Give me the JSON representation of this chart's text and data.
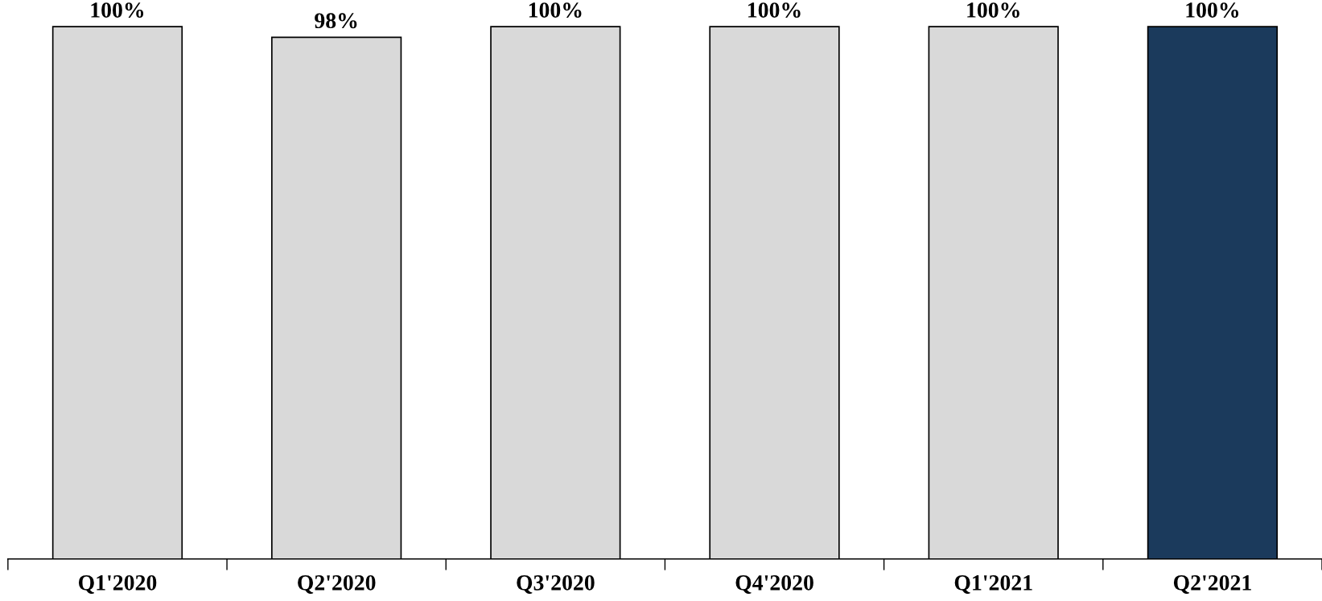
{
  "chart_data": {
    "type": "bar",
    "categories": [
      "Q1'2020",
      "Q2'2020",
      "Q3'2020",
      "Q4'2020",
      "Q1'2021",
      "Q2'2021"
    ],
    "values": [
      100,
      98,
      100,
      100,
      100,
      100
    ],
    "colors": [
      "#d9d9d9",
      "#d9d9d9",
      "#d9d9d9",
      "#d9d9d9",
      "#d9d9d9",
      "#1b3a5c"
    ],
    "value_labels": [
      "100%",
      "98%",
      "100%",
      "100%",
      "100%",
      "100%"
    ],
    "tick_labels": "x",
    "grid": false,
    "legend": false
  }
}
